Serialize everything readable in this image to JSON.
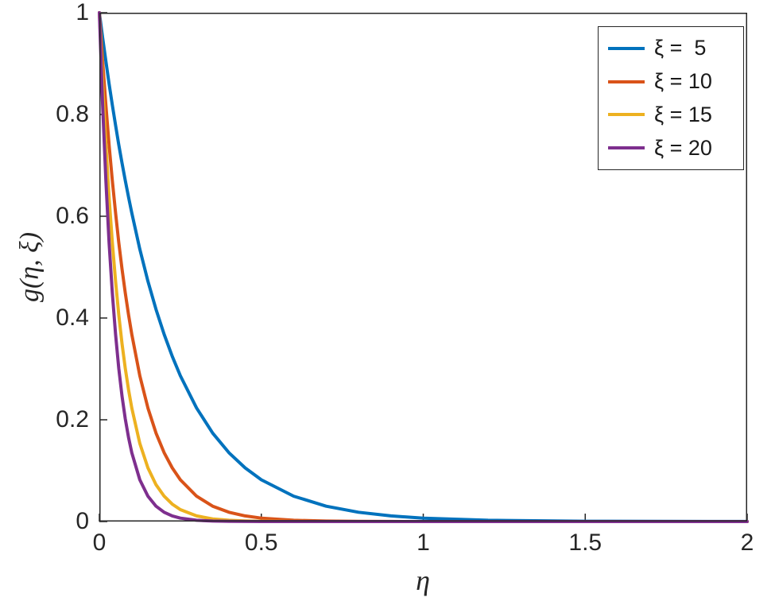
{
  "figure": {
    "background": "#ffffff"
  },
  "axes": {
    "x_label": "η",
    "y_label": "g(η, ξ)",
    "x_ticks": [
      "0",
      "0.5",
      "1",
      "1.5",
      "2"
    ],
    "y_ticks": [
      "0",
      "0.2",
      "0.4",
      "0.6",
      "0.8",
      "1"
    ],
    "axis_color": "#262626"
  },
  "legend": {
    "position": "top-right",
    "entries": [
      {
        "label": "ξ =  5",
        "color": "#0072BD"
      },
      {
        "label": "ξ = 10",
        "color": "#D95319"
      },
      {
        "label": "ξ = 15",
        "color": "#EDB120"
      },
      {
        "label": "ξ = 20",
        "color": "#7E2F8E"
      }
    ]
  },
  "chart_data": {
    "type": "line",
    "title": "",
    "xlabel": "η",
    "ylabel": "g(η, ξ)",
    "xlim": [
      0,
      2
    ],
    "ylim": [
      0,
      1
    ],
    "grid": false,
    "legend_position": "top-right",
    "x": [
      0,
      0.01,
      0.02,
      0.03,
      0.04,
      0.05,
      0.06,
      0.07,
      0.08,
      0.09,
      0.1,
      0.125,
      0.15,
      0.175,
      0.2,
      0.225,
      0.25,
      0.3,
      0.35,
      0.4,
      0.45,
      0.5,
      0.6,
      0.7,
      0.8,
      0.9,
      1.0,
      1.2,
      1.5,
      2.0
    ],
    "series": [
      {
        "name": "ξ =  5",
        "color": "#0072BD",
        "values": [
          1,
          0.9512,
          0.9048,
          0.8607,
          0.8187,
          0.7788,
          0.7408,
          0.7047,
          0.6703,
          0.6376,
          0.6065,
          0.5353,
          0.4724,
          0.4169,
          0.3679,
          0.3247,
          0.2865,
          0.2231,
          0.1738,
          0.1353,
          0.1054,
          0.0821,
          0.0498,
          0.0302,
          0.0183,
          0.0111,
          0.0067,
          0.0025,
          0.0006,
          0.0001
        ]
      },
      {
        "name": "ξ = 10",
        "color": "#D95319",
        "values": [
          1,
          0.9048,
          0.8187,
          0.7408,
          0.6703,
          0.6065,
          0.5488,
          0.4966,
          0.4493,
          0.4066,
          0.3679,
          0.2865,
          0.2231,
          0.1738,
          0.1353,
          0.1054,
          0.0821,
          0.0498,
          0.0302,
          0.0183,
          0.0111,
          0.0067,
          0.0025,
          0.0009,
          0.0003,
          0.0001,
          0,
          0,
          0,
          0
        ]
      },
      {
        "name": "ξ = 15",
        "color": "#EDB120",
        "values": [
          1,
          0.8607,
          0.7408,
          0.6376,
          0.5488,
          0.4724,
          0.4066,
          0.3499,
          0.3012,
          0.2592,
          0.2231,
          0.1534,
          0.1054,
          0.0724,
          0.0498,
          0.0342,
          0.0235,
          0.0111,
          0.0052,
          0.0025,
          0.0012,
          0.0006,
          0.0001,
          0,
          0,
          0,
          0,
          0,
          0,
          0
        ]
      },
      {
        "name": "ξ = 20",
        "color": "#7E2F8E",
        "values": [
          1,
          0.8187,
          0.6703,
          0.5488,
          0.4493,
          0.3679,
          0.3012,
          0.2466,
          0.2019,
          0.1653,
          0.1353,
          0.0821,
          0.0498,
          0.0302,
          0.0183,
          0.0111,
          0.0067,
          0.0025,
          0.0009,
          0.0003,
          0.0001,
          0,
          0,
          0,
          0,
          0,
          0,
          0,
          0,
          0
        ]
      }
    ]
  }
}
